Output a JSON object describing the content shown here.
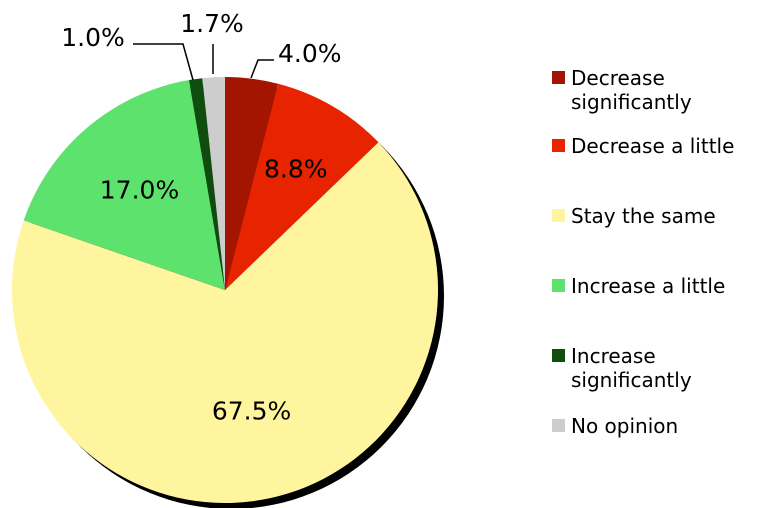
{
  "chart_data": {
    "type": "pie",
    "title": "",
    "start_angle_deg": 0,
    "direction": "clockwise",
    "shadow": true,
    "legend_position": "right",
    "slices": [
      {
        "label": "Decrease significantly",
        "value": 4.0,
        "value_label": "4.0%",
        "color": "#A31500"
      },
      {
        "label": "Decrease a little",
        "value": 8.8,
        "value_label": "8.8%",
        "color": "#E82300"
      },
      {
        "label": "Stay the same",
        "value": 67.5,
        "value_label": "67.5%",
        "color": "#FFF59E"
      },
      {
        "label": "Increase a little",
        "value": 17.0,
        "value_label": "17.0%",
        "color": "#5EE26E"
      },
      {
        "label": "Increase significantly",
        "value": 1.0,
        "value_label": "1.0%",
        "color": "#0E4D0E"
      },
      {
        "label": "No opinion",
        "value": 1.7,
        "value_label": "1.7%",
        "color": "#CDCDCD"
      }
    ]
  }
}
